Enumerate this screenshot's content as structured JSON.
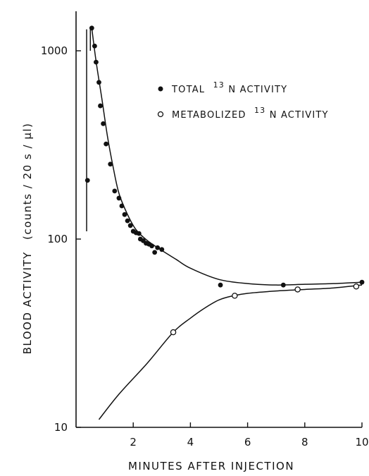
{
  "chart_data": {
    "type": "scatter",
    "title": "",
    "xlabel": "MINUTES  AFTER  INJECTION",
    "ylabel": "BLOOD  ACTIVITY",
    "ylabel_unit": "(counts / 20 s / µl)",
    "y_scale": "log",
    "xlim": [
      0,
      10
    ],
    "ylim": [
      10,
      1600
    ],
    "x_ticks": [
      2,
      4,
      6,
      8,
      10
    ],
    "x_tick_labels": [
      "2",
      "4",
      "6",
      "8",
      "10"
    ],
    "y_ticks": [
      10,
      100,
      1000
    ],
    "y_tick_labels": [
      "10",
      "100",
      "1000"
    ],
    "legend_position": "top-right",
    "series": [
      {
        "name_prefix": "TOTAL",
        "name_sup": "13",
        "name_suffix": "N  ACTIVITY",
        "marker": "filled-circle",
        "x": [
          0.4,
          0.55,
          0.65,
          0.7,
          0.8,
          0.85,
          0.95,
          1.05,
          1.2,
          1.35,
          1.5,
          1.6,
          1.7,
          1.8,
          1.9,
          2.0,
          2.1,
          2.2,
          2.25,
          2.35,
          2.45,
          2.55,
          2.65,
          2.75,
          2.85,
          3.0,
          5.05,
          7.25,
          10.0
        ],
        "y": [
          205,
          1320,
          1060,
          870,
          680,
          510,
          410,
          320,
          250,
          180,
          165,
          150,
          135,
          125,
          118,
          110,
          108,
          107,
          100,
          98,
          95,
          94,
          92,
          85,
          90,
          88,
          57,
          57,
          59
        ]
      },
      {
        "name_prefix": "METABOLIZED",
        "name_sup": "13",
        "name_suffix": "N  ACTIVITY",
        "marker": "open-circle",
        "x": [
          3.4,
          5.55,
          7.75,
          9.8
        ],
        "y": [
          32,
          50,
          54,
          56
        ]
      }
    ],
    "fit_curves": [
      {
        "series": "total",
        "x": [
          0.55,
          0.7,
          0.9,
          1.1,
          1.3,
          1.5,
          1.8,
          2.1,
          2.5,
          3.0,
          3.5,
          4.0,
          5.0,
          6.0,
          7.0,
          8.0,
          9.0,
          10.0
        ],
        "y": [
          1320,
          880,
          560,
          350,
          240,
          175,
          135,
          112,
          98,
          87,
          78,
          70,
          61,
          58,
          57,
          57.5,
          58,
          59
        ]
      },
      {
        "series": "metabolized",
        "x": [
          0.8,
          1.5,
          2.5,
          3.4,
          4.0,
          4.5,
          5.0,
          5.5,
          6.0,
          7.0,
          8.0,
          9.0,
          10.0
        ],
        "y": [
          11,
          15,
          22,
          32,
          38,
          43,
          47.5,
          50,
          51.5,
          53,
          54,
          55,
          57
        ]
      }
    ],
    "annotations": [
      {
        "type": "vertical-line",
        "x": 0.37,
        "y_range": [
          110,
          1300
        ]
      },
      {
        "type": "vertical-line",
        "x": 0.5,
        "y_range": [
          1000,
          1300
        ]
      }
    ]
  }
}
